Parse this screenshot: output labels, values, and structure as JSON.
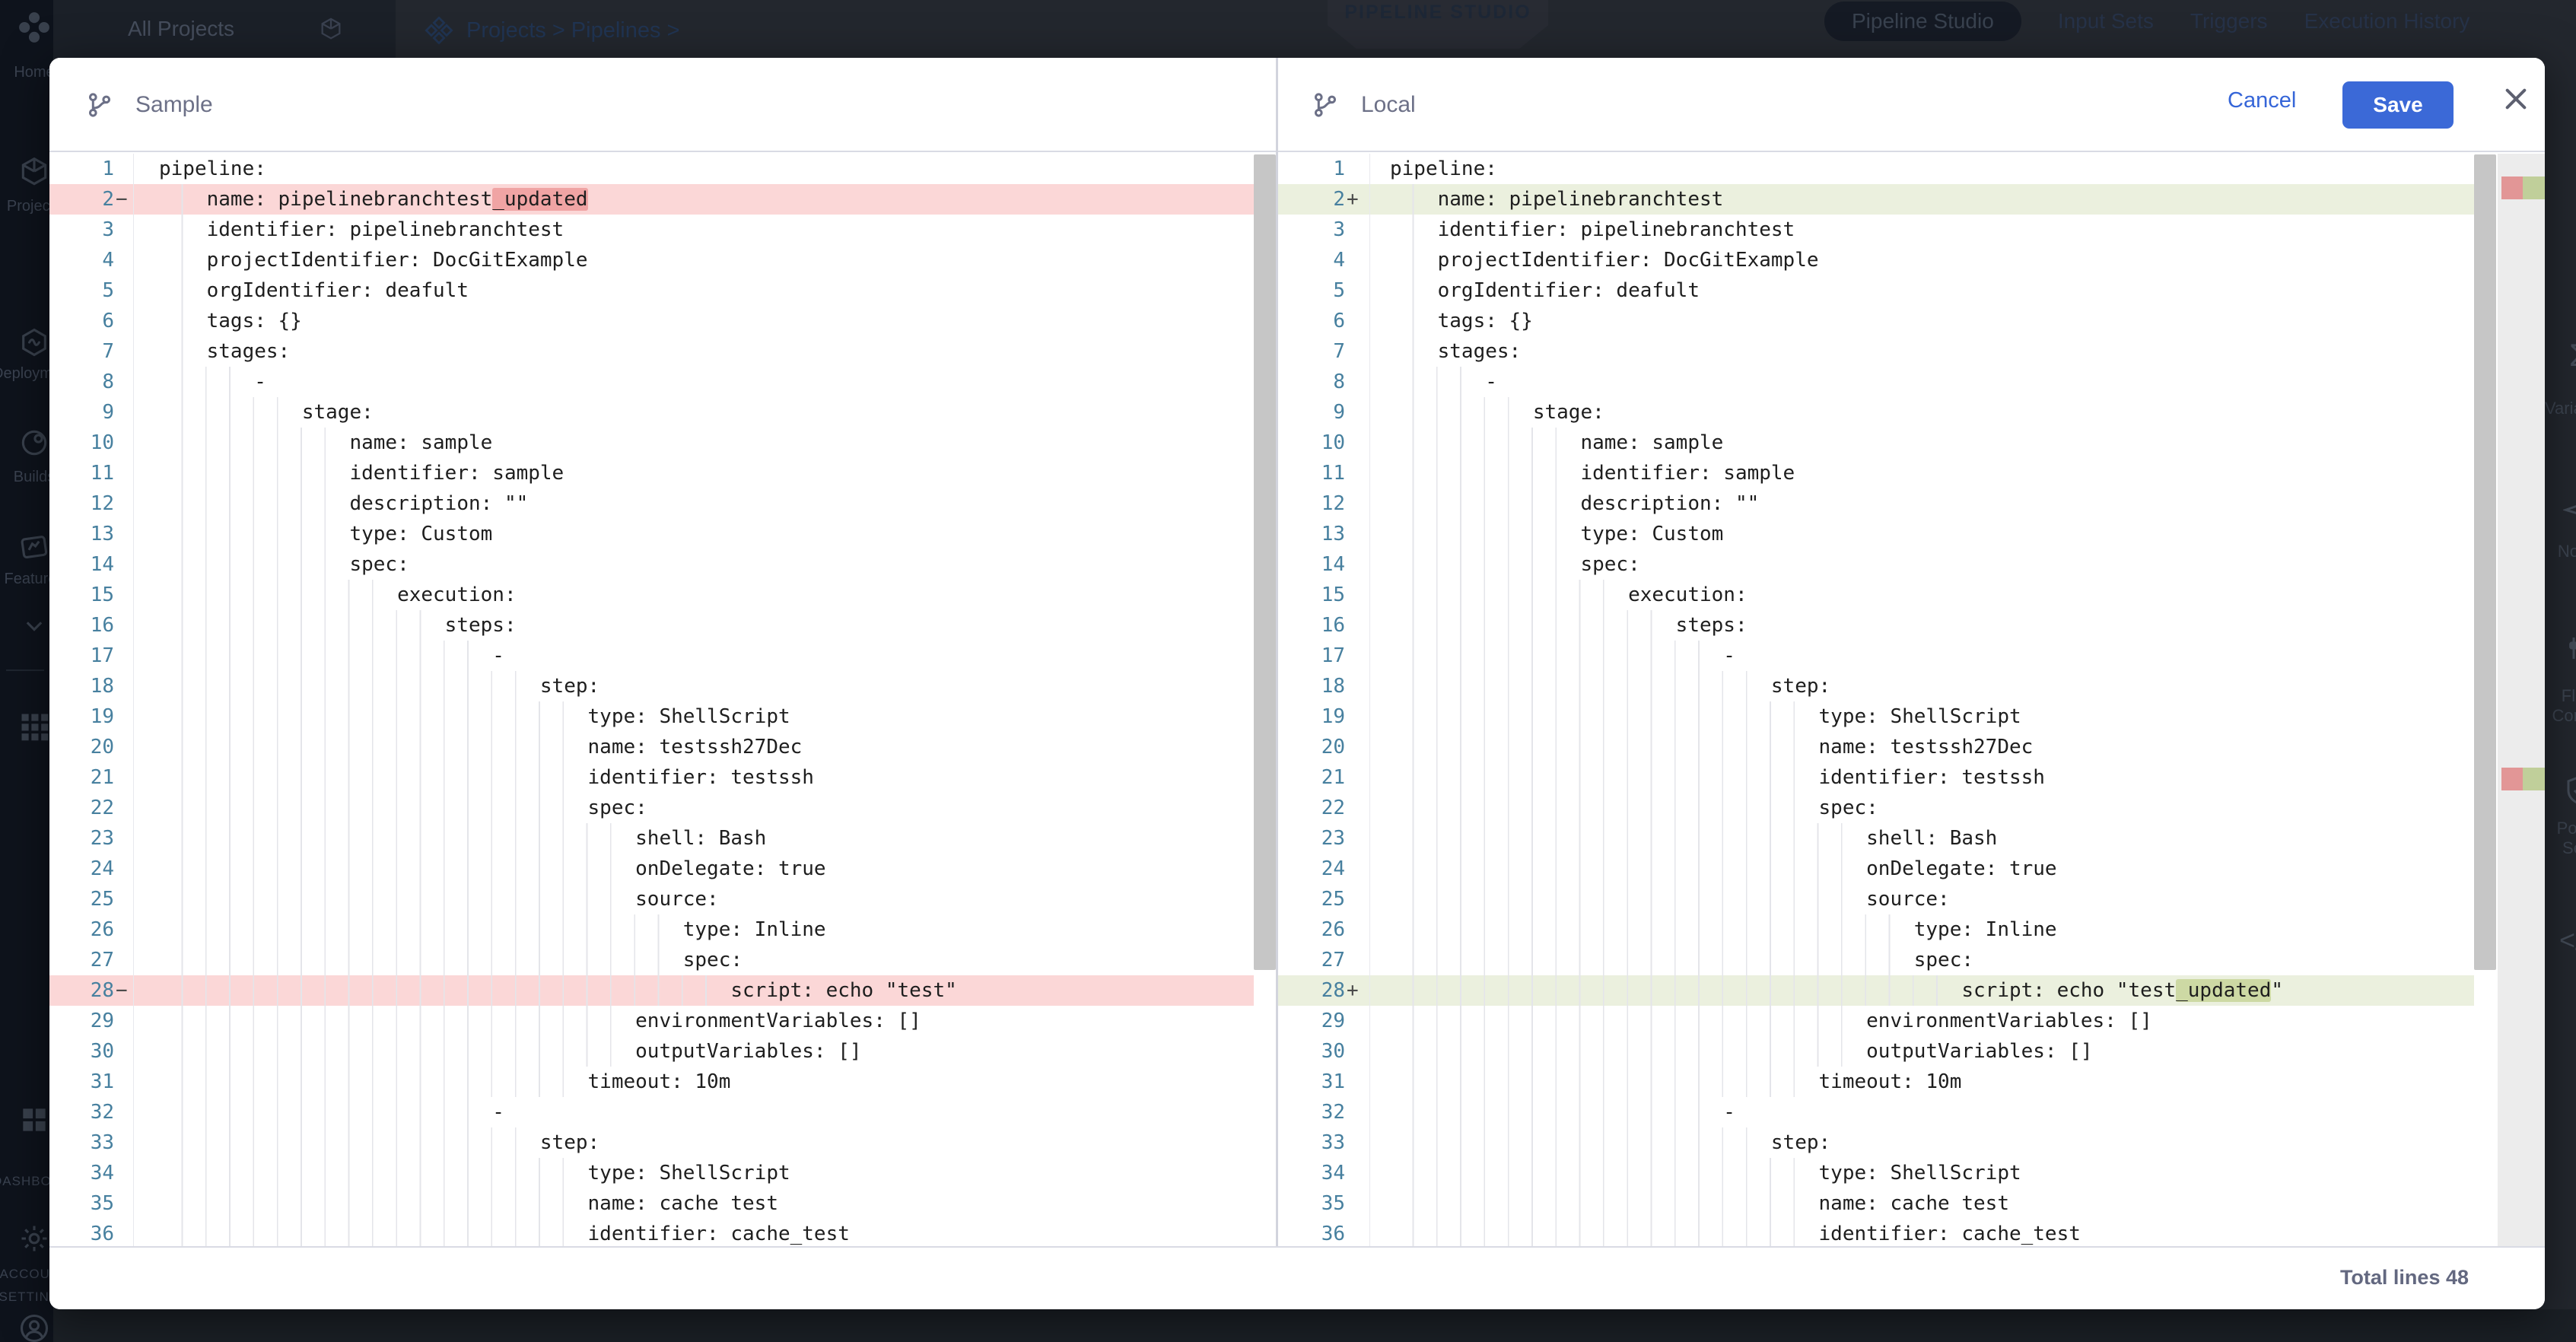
{
  "background": {
    "project_selector": "All Projects",
    "breadcrumb": "Projects > Pipelines >",
    "studio_badge": "PIPELINE STUDIO",
    "active_tab": "Pipeline Studio",
    "tabs": [
      "Pipeline Studio",
      "Input Sets",
      "Triggers",
      "Execution History"
    ],
    "sidebar": [
      {
        "icon": "harness-logo",
        "label": ""
      },
      {
        "icon": "home",
        "label": "Home"
      },
      {
        "icon": "projects-cube",
        "label": "Projects"
      },
      {
        "icon": "deployments-infinity",
        "label": "Deployments"
      },
      {
        "icon": "builds",
        "label": "Builds"
      },
      {
        "icon": "features-flag",
        "label": "Features"
      },
      {
        "icon": "chevron-down",
        "label": ""
      },
      {
        "icon": "module-grid",
        "label": ""
      },
      {
        "icon": "dashboards-grid",
        "label": "DASHBOARDS",
        "caps": true
      },
      {
        "icon": "settings-gear",
        "label": "ACCOUNT SETTINGS",
        "caps": true,
        "twoline": true
      },
      {
        "icon": "avatar",
        "label": ""
      }
    ],
    "right_rail": [
      {
        "icon": "sigma",
        "label": "Variables"
      },
      {
        "icon": "paper-plane",
        "label": "Notify"
      },
      {
        "icon": "sliders",
        "label": "Flow Control",
        "twoline": true
      },
      {
        "icon": "shield-check",
        "label": "Policy Sets",
        "twoline": true
      },
      {
        "icon": "code",
        "label": ""
      }
    ]
  },
  "modal": {
    "left_header": {
      "icon": "git-branch",
      "title": "Sample"
    },
    "right_header": {
      "icon": "git-branch",
      "title": "Local",
      "cancel_label": "Cancel",
      "save_label": "Save"
    },
    "footer": {
      "total_label": "Total lines 48"
    }
  },
  "colors": {
    "save_button": "#3b69d7",
    "cancel_link": "#3565d8",
    "removed_row": "#fbd7d7",
    "removed_inline": "#f0a4a4",
    "added_row": "#ebf0de",
    "added_inline": "#cdd9a4",
    "line_number": "#47809f"
  },
  "diff": {
    "removed_sign": "−",
    "added_sign": "+",
    "lines": [
      {
        "n": 1,
        "text": "pipeline:"
      },
      {
        "n": 2,
        "left": {
          "type": "removed",
          "segments": [
            "    name: pipelinebranchtest",
            "_updated",
            ""
          ]
        },
        "right": {
          "type": "added",
          "segments": [
            "    name: pipelinebranchtest",
            "",
            ""
          ]
        }
      },
      {
        "n": 3,
        "text": "    identifier: pipelinebranchtest"
      },
      {
        "n": 4,
        "text": "    projectIdentifier: DocGitExample"
      },
      {
        "n": 5,
        "text": "    orgIdentifier: deafult"
      },
      {
        "n": 6,
        "text": "    tags: {}"
      },
      {
        "n": 7,
        "text": "    stages:"
      },
      {
        "n": 8,
        "text": "        -"
      },
      {
        "n": 9,
        "text": "            stage:"
      },
      {
        "n": 10,
        "text": "                name: sample"
      },
      {
        "n": 11,
        "text": "                identifier: sample"
      },
      {
        "n": 12,
        "text": "                description: \"\""
      },
      {
        "n": 13,
        "text": "                type: Custom"
      },
      {
        "n": 14,
        "text": "                spec:"
      },
      {
        "n": 15,
        "text": "                    execution:"
      },
      {
        "n": 16,
        "text": "                        steps:"
      },
      {
        "n": 17,
        "text": "                            -"
      },
      {
        "n": 18,
        "text": "                                step:"
      },
      {
        "n": 19,
        "text": "                                    type: ShellScript"
      },
      {
        "n": 20,
        "text": "                                    name: testssh27Dec"
      },
      {
        "n": 21,
        "text": "                                    identifier: testssh"
      },
      {
        "n": 22,
        "text": "                                    spec:"
      },
      {
        "n": 23,
        "text": "                                        shell: Bash"
      },
      {
        "n": 24,
        "text": "                                        onDelegate: true"
      },
      {
        "n": 25,
        "text": "                                        source:"
      },
      {
        "n": 26,
        "text": "                                            type: Inline"
      },
      {
        "n": 27,
        "text": "                                            spec:"
      },
      {
        "n": 28,
        "left": {
          "type": "removed",
          "segments": [
            "                                                script: echo \"test\"",
            "",
            ""
          ]
        },
        "right": {
          "type": "added",
          "segments": [
            "                                                script: echo \"test",
            "_updated",
            "\""
          ]
        }
      },
      {
        "n": 29,
        "text": "                                        environmentVariables: []"
      },
      {
        "n": 30,
        "text": "                                        outputVariables: []"
      },
      {
        "n": 31,
        "text": "                                    timeout: 10m"
      },
      {
        "n": 32,
        "text": "                            -"
      },
      {
        "n": 33,
        "text": "                                step:"
      },
      {
        "n": 34,
        "text": "                                    type: ShellScript"
      },
      {
        "n": 35,
        "text": "                                    name: cache test"
      },
      {
        "n": 36,
        "text": "                                    identifier: cache_test"
      }
    ]
  }
}
